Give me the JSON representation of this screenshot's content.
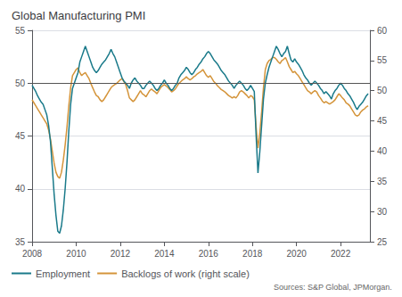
{
  "chart_data": {
    "type": "line",
    "title": "Global Manufacturing PMI",
    "source": "Sources: S&P Global, JPMorgan.",
    "x": [
      2008,
      2008.0833333333,
      2008.1666666667,
      2008.25,
      2008.3333333333,
      2008.4166666667,
      2008.5,
      2008.5833333333,
      2008.6666666667,
      2008.75,
      2008.8333333333,
      2008.9166666667,
      2009,
      2009.0833333333,
      2009.1666666667,
      2009.25,
      2009.3333333333,
      2009.4166666667,
      2009.5,
      2009.5833333333,
      2009.6666666667,
      2009.75,
      2009.8333333333,
      2009.9166666667,
      2010,
      2010.0833333333,
      2010.1666666667,
      2010.25,
      2010.3333333333,
      2010.4166666667,
      2010.5,
      2010.5833333333,
      2010.6666666667,
      2010.75,
      2010.8333333333,
      2010.9166666667,
      2011,
      2011.0833333333,
      2011.1666666667,
      2011.25,
      2011.3333333333,
      2011.4166666667,
      2011.5,
      2011.5833333333,
      2011.6666666667,
      2011.75,
      2011.8333333333,
      2011.9166666667,
      2012,
      2012.0833333333,
      2012.1666666667,
      2012.25,
      2012.3333333333,
      2012.4166666667,
      2012.5,
      2012.5833333333,
      2012.6666666667,
      2012.75,
      2012.8333333333,
      2012.9166666667,
      2013,
      2013.0833333333,
      2013.1666666667,
      2013.25,
      2013.3333333333,
      2013.4166666667,
      2013.5,
      2013.5833333333,
      2013.6666666667,
      2013.75,
      2013.8333333333,
      2013.9166666667,
      2014,
      2014.0833333333,
      2014.1666666667,
      2014.25,
      2014.3333333333,
      2014.4166666667,
      2014.5,
      2014.5833333333,
      2014.6666666667,
      2014.75,
      2014.8333333333,
      2014.9166666667,
      2015,
      2015.0833333333,
      2015.1666666667,
      2015.25,
      2015.3333333333,
      2015.4166666667,
      2015.5,
      2015.5833333333,
      2015.6666666667,
      2015.75,
      2015.8333333333,
      2015.9166666667,
      2016,
      2016.0833333333,
      2016.1666666667,
      2016.25,
      2016.3333333333,
      2016.4166666667,
      2016.5,
      2016.5833333333,
      2016.6666666667,
      2016.75,
      2016.8333333333,
      2016.9166666667,
      2017,
      2017.0833333333,
      2017.1666666667,
      2017.25,
      2017.3333333333,
      2017.4166666667,
      2017.5,
      2017.5833333333,
      2017.6666666667,
      2017.75,
      2017.8333333333,
      2017.9166666667,
      2018,
      2018.0833333333,
      2018.1666666667,
      2018.25,
      2018.3333333333,
      2018.4166666667,
      2018.5,
      2018.5833333333,
      2018.6666666667,
      2018.75,
      2018.8333333333,
      2018.9166666667,
      2019,
      2019.0833333333,
      2019.1666666667,
      2019.25,
      2019.3333333333,
      2019.4166666667,
      2019.5,
      2019.5833333333,
      2019.6666666667,
      2019.75,
      2019.8333333333,
      2019.9166666667,
      2020,
      2020.0833333333,
      2020.1666666667,
      2020.25,
      2020.3333333333,
      2020.4166666667,
      2020.5,
      2020.5833333333,
      2020.6666666667,
      2020.75,
      2020.8333333333,
      2020.9166666667,
      2021,
      2021.0833333333,
      2021.1666666667,
      2021.25,
      2021.3333333333,
      2021.4166666667,
      2021.5,
      2021.5833333333,
      2021.6666666667,
      2021.75,
      2021.8333333333,
      2021.9166666667,
      2022,
      2022.0833333333,
      2022.1666666667,
      2022.25,
      2022.3333333333,
      2022.4166666667,
      2022.5,
      2022.5833333333,
      2022.6666666667,
      2022.75,
      2022.8333333333,
      2022.9166666667,
      2023,
      2023.0833333333,
      2023.1666666667,
      2023.25
    ],
    "xlim": [
      2008,
      2023.33
    ],
    "xticks": [
      2008,
      2010,
      2012,
      2014,
      2016,
      2018,
      2020,
      2022
    ],
    "ylim": [
      35,
      55
    ],
    "yticks": [
      35,
      40,
      45,
      50,
      55
    ],
    "y2lim": [
      25,
      60
    ],
    "y2ticks": [
      25,
      30,
      35,
      40,
      45,
      50,
      55,
      60
    ],
    "grid": true,
    "legend": "lower left",
    "reference_lines": [
      {
        "y": 50,
        "color": "#555555"
      }
    ],
    "series": [
      {
        "name": "Employment",
        "color": "#1a7a8a",
        "axis": "y",
        "values": [
          49.8,
          49.5,
          49.2,
          48.8,
          48.5,
          48.2,
          48.0,
          47.5,
          47.0,
          46.0,
          44.5,
          42.0,
          39.5,
          37.5,
          36.0,
          35.8,
          36.5,
          38.0,
          40.0,
          42.5,
          45.5,
          48.0,
          49.5,
          50.0,
          50.5,
          51.0,
          52.0,
          52.5,
          53.0,
          53.5,
          53.0,
          52.5,
          52.0,
          51.5,
          51.2,
          51.0,
          51.2,
          51.5,
          51.8,
          52.0,
          52.2,
          52.5,
          52.8,
          53.2,
          52.8,
          52.5,
          52.0,
          51.5,
          51.0,
          50.5,
          50.2,
          50.0,
          49.8,
          49.5,
          50.0,
          50.3,
          50.5,
          50.2,
          50.0,
          49.8,
          49.5,
          49.5,
          49.8,
          50.0,
          50.2,
          50.0,
          49.8,
          49.5,
          49.3,
          49.5,
          49.8,
          50.0,
          50.3,
          50.0,
          49.8,
          49.5,
          49.3,
          49.5,
          49.8,
          50.0,
          50.5,
          50.8,
          51.0,
          51.2,
          51.5,
          51.3,
          51.0,
          50.8,
          51.0,
          51.3,
          51.5,
          51.8,
          52.0,
          52.3,
          52.5,
          52.8,
          53.0,
          52.8,
          52.5,
          52.2,
          52.0,
          51.8,
          51.5,
          51.2,
          51.0,
          50.8,
          50.5,
          50.2,
          50.0,
          49.8,
          49.5,
          49.8,
          50.0,
          50.2,
          50.0,
          49.8,
          49.5,
          49.3,
          49.5,
          49.8,
          49.5,
          49.2,
          45.0,
          41.5,
          43.5,
          46.0,
          48.5,
          50.0,
          50.8,
          51.5,
          52.0,
          52.5,
          53.0,
          53.5,
          53.2,
          52.8,
          52.5,
          52.8,
          53.0,
          53.5,
          52.8,
          52.2,
          52.0,
          52.3,
          52.0,
          51.8,
          51.5,
          51.2,
          50.8,
          50.5,
          50.3,
          50.0,
          49.8,
          50.0,
          50.2,
          50.0,
          49.8,
          49.5,
          49.3,
          49.0,
          49.2,
          49.0,
          48.8,
          48.5,
          49.0,
          49.3,
          49.5,
          49.8,
          50.0,
          49.8,
          49.5,
          49.3,
          49.0,
          48.8,
          48.5,
          48.2,
          47.8,
          47.5,
          47.8,
          48.0,
          48.2,
          48.5,
          48.8,
          49.0
        ]
      },
      {
        "name": "Backlogs of work (right scale)",
        "color": "#d4943a",
        "axis": "y2",
        "values": [
          48.5,
          48.0,
          47.5,
          47.0,
          46.5,
          46.0,
          45.5,
          45.0,
          44.5,
          43.5,
          42.0,
          40.0,
          38.0,
          36.5,
          35.8,
          35.5,
          36.5,
          38.5,
          41.0,
          44.0,
          47.5,
          50.5,
          52.5,
          53.0,
          53.5,
          53.8,
          53.0,
          52.5,
          52.8,
          53.0,
          52.5,
          52.0,
          51.2,
          50.5,
          49.8,
          49.2,
          49.0,
          48.5,
          48.2,
          48.5,
          49.0,
          49.5,
          50.0,
          50.5,
          50.8,
          51.0,
          51.2,
          51.5,
          51.8,
          52.0,
          51.5,
          51.0,
          50.0,
          48.8,
          48.5,
          48.2,
          48.5,
          49.0,
          49.5,
          50.0,
          49.5,
          49.3,
          49.0,
          49.5,
          50.0,
          50.3,
          50.0,
          49.8,
          49.5,
          50.0,
          50.5,
          50.8,
          51.0,
          50.8,
          50.5,
          50.2,
          49.8,
          50.0,
          50.3,
          50.8,
          51.2,
          51.5,
          51.8,
          52.0,
          52.3,
          52.0,
          51.8,
          52.0,
          52.3,
          52.5,
          52.8,
          53.0,
          53.2,
          53.5,
          53.0,
          52.5,
          52.2,
          52.5,
          52.0,
          51.5,
          51.2,
          50.8,
          50.5,
          50.2,
          50.0,
          49.8,
          49.5,
          49.2,
          49.0,
          48.8,
          49.0,
          48.8,
          49.2,
          49.8,
          50.0,
          49.8,
          49.5,
          49.2,
          48.8,
          49.2,
          49.0,
          48.5,
          44.0,
          40.5,
          43.0,
          46.5,
          50.5,
          53.5,
          54.5,
          55.0,
          55.2,
          55.5,
          55.5,
          55.2,
          54.8,
          54.5,
          55.0,
          55.2,
          55.5,
          54.8,
          54.0,
          53.5,
          53.0,
          53.2,
          52.8,
          52.5,
          52.0,
          51.5,
          51.0,
          50.5,
          50.0,
          49.8,
          49.5,
          49.8,
          50.0,
          49.8,
          49.2,
          48.8,
          48.3,
          48.0,
          48.2,
          48.0,
          47.8,
          48.0,
          48.2,
          48.5,
          49.0,
          49.5,
          49.2,
          48.8,
          48.5,
          48.0,
          47.8,
          47.5,
          47.0,
          46.5,
          46.0,
          45.8,
          46.0,
          46.5,
          46.8,
          47.0,
          47.3,
          47.5
        ]
      }
    ]
  }
}
